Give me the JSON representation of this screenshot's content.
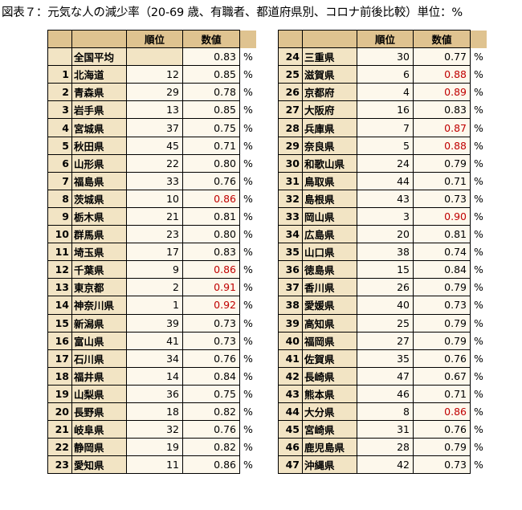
{
  "title": "図表７：元気な人の減少率（20-69 歳、有職者、都道府県別、コロナ前後比較）単位：%",
  "headers": {
    "rank": "順位",
    "value": "数値"
  },
  "unit": "%",
  "highlight_color": "#c00000",
  "national": {
    "name": "全国平均",
    "value": "0.83"
  },
  "left_rows": [
    {
      "no": "1",
      "name": "北海道",
      "rank": "12",
      "value": "0.85",
      "hl": false
    },
    {
      "no": "2",
      "name": "青森県",
      "rank": "29",
      "value": "0.78",
      "hl": false
    },
    {
      "no": "3",
      "name": "岩手県",
      "rank": "13",
      "value": "0.85",
      "hl": false
    },
    {
      "no": "4",
      "name": "宮城県",
      "rank": "37",
      "value": "0.75",
      "hl": false
    },
    {
      "no": "5",
      "name": "秋田県",
      "rank": "45",
      "value": "0.71",
      "hl": false
    },
    {
      "no": "6",
      "name": "山形県",
      "rank": "22",
      "value": "0.80",
      "hl": false
    },
    {
      "no": "7",
      "name": "福島県",
      "rank": "33",
      "value": "0.76",
      "hl": false
    },
    {
      "no": "8",
      "name": "茨城県",
      "rank": "10",
      "value": "0.86",
      "hl": true
    },
    {
      "no": "9",
      "name": "栃木県",
      "rank": "21",
      "value": "0.81",
      "hl": false
    },
    {
      "no": "10",
      "name": "群馬県",
      "rank": "23",
      "value": "0.80",
      "hl": false
    },
    {
      "no": "11",
      "name": "埼玉県",
      "rank": "17",
      "value": "0.83",
      "hl": false
    },
    {
      "no": "12",
      "name": "千葉県",
      "rank": "9",
      "value": "0.86",
      "hl": true
    },
    {
      "no": "13",
      "name": "東京都",
      "rank": "2",
      "value": "0.91",
      "hl": true
    },
    {
      "no": "14",
      "name": "神奈川県",
      "rank": "1",
      "value": "0.92",
      "hl": true
    },
    {
      "no": "15",
      "name": "新潟県",
      "rank": "39",
      "value": "0.73",
      "hl": false
    },
    {
      "no": "16",
      "name": "富山県",
      "rank": "41",
      "value": "0.73",
      "hl": false
    },
    {
      "no": "17",
      "name": "石川県",
      "rank": "34",
      "value": "0.76",
      "hl": false
    },
    {
      "no": "18",
      "name": "福井県",
      "rank": "14",
      "value": "0.84",
      "hl": false
    },
    {
      "no": "19",
      "name": "山梨県",
      "rank": "36",
      "value": "0.75",
      "hl": false
    },
    {
      "no": "20",
      "name": "長野県",
      "rank": "18",
      "value": "0.82",
      "hl": false
    },
    {
      "no": "21",
      "name": "岐阜県",
      "rank": "32",
      "value": "0.76",
      "hl": false
    },
    {
      "no": "22",
      "name": "静岡県",
      "rank": "19",
      "value": "0.82",
      "hl": false
    },
    {
      "no": "23",
      "name": "愛知県",
      "rank": "11",
      "value": "0.86",
      "hl": false
    }
  ],
  "right_rows": [
    {
      "no": "24",
      "name": "三重県",
      "rank": "30",
      "value": "0.77",
      "hl": false
    },
    {
      "no": "25",
      "name": "滋賀県",
      "rank": "6",
      "value": "0.88",
      "hl": true
    },
    {
      "no": "26",
      "name": "京都府",
      "rank": "4",
      "value": "0.89",
      "hl": true
    },
    {
      "no": "27",
      "name": "大阪府",
      "rank": "16",
      "value": "0.83",
      "hl": false
    },
    {
      "no": "28",
      "name": "兵庫県",
      "rank": "7",
      "value": "0.87",
      "hl": true
    },
    {
      "no": "29",
      "name": "奈良県",
      "rank": "5",
      "value": "0.88",
      "hl": true
    },
    {
      "no": "30",
      "name": "和歌山県",
      "rank": "24",
      "value": "0.79",
      "hl": false
    },
    {
      "no": "31",
      "name": "鳥取県",
      "rank": "44",
      "value": "0.71",
      "hl": false
    },
    {
      "no": "32",
      "name": "島根県",
      "rank": "43",
      "value": "0.73",
      "hl": false
    },
    {
      "no": "33",
      "name": "岡山県",
      "rank": "3",
      "value": "0.90",
      "hl": true
    },
    {
      "no": "34",
      "name": "広島県",
      "rank": "20",
      "value": "0.81",
      "hl": false
    },
    {
      "no": "35",
      "name": "山口県",
      "rank": "38",
      "value": "0.74",
      "hl": false
    },
    {
      "no": "36",
      "name": "徳島県",
      "rank": "15",
      "value": "0.84",
      "hl": false
    },
    {
      "no": "37",
      "name": "香川県",
      "rank": "26",
      "value": "0.79",
      "hl": false
    },
    {
      "no": "38",
      "name": "愛媛県",
      "rank": "40",
      "value": "0.73",
      "hl": false
    },
    {
      "no": "39",
      "name": "高知県",
      "rank": "25",
      "value": "0.79",
      "hl": false
    },
    {
      "no": "40",
      "name": "福岡県",
      "rank": "27",
      "value": "0.79",
      "hl": false
    },
    {
      "no": "41",
      "name": "佐賀県",
      "rank": "35",
      "value": "0.76",
      "hl": false
    },
    {
      "no": "42",
      "name": "長崎県",
      "rank": "47",
      "value": "0.67",
      "hl": false
    },
    {
      "no": "43",
      "name": "熊本県",
      "rank": "46",
      "value": "0.71",
      "hl": false
    },
    {
      "no": "44",
      "name": "大分県",
      "rank": "8",
      "value": "0.86",
      "hl": true
    },
    {
      "no": "45",
      "name": "宮崎県",
      "rank": "31",
      "value": "0.76",
      "hl": false
    },
    {
      "no": "46",
      "name": "鹿児島県",
      "rank": "28",
      "value": "0.79",
      "hl": false
    },
    {
      "no": "47",
      "name": "沖縄県",
      "rank": "42",
      "value": "0.73",
      "hl": false
    }
  ]
}
